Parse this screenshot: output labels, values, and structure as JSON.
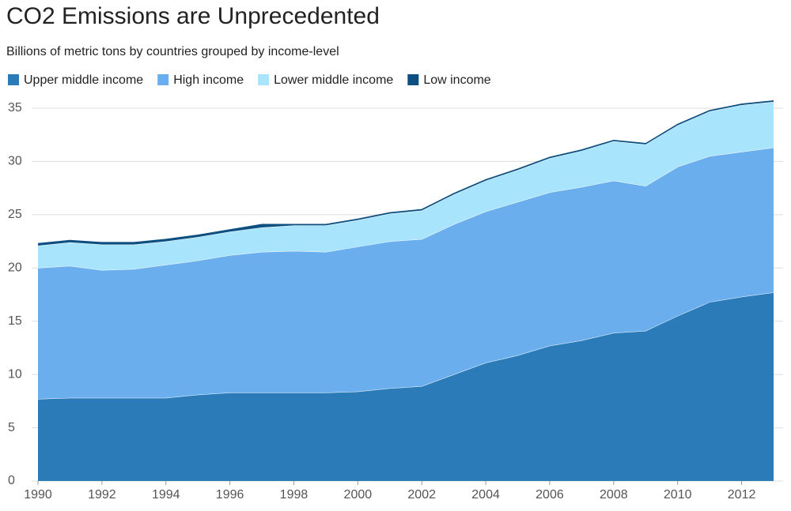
{
  "chart_data": {
    "type": "stacked-area",
    "title": "CO2 Emissions are Unprecedented",
    "subtitle": "Billions of metric tons by countries grouped by income-level",
    "x": [
      1990,
      1991,
      1992,
      1993,
      1994,
      1995,
      1996,
      1997,
      1998,
      1999,
      2000,
      2001,
      2002,
      2003,
      2004,
      2005,
      2006,
      2007,
      2008,
      2009,
      2010,
      2011,
      2012,
      2013
    ],
    "series": [
      {
        "name": "Upper middle income",
        "color": "#2b7bb9",
        "values": [
          7.7,
          7.8,
          7.8,
          7.8,
          7.8,
          8.1,
          8.3,
          8.3,
          8.3,
          8.3,
          8.4,
          8.7,
          8.9,
          10.0,
          11.1,
          11.8,
          12.7,
          13.2,
          13.9,
          14.1,
          15.5,
          16.8,
          17.3,
          17.7
        ]
      },
      {
        "name": "High income",
        "color": "#6aaeee",
        "values": [
          12.3,
          12.4,
          12.0,
          12.1,
          12.5,
          12.6,
          12.9,
          13.2,
          13.3,
          13.2,
          13.6,
          13.8,
          13.8,
          14.1,
          14.2,
          14.4,
          14.4,
          14.4,
          14.3,
          13.6,
          14.0,
          13.7,
          13.6,
          13.6
        ]
      },
      {
        "name": "Lower middle income",
        "color": "#a8e4fb",
        "values": [
          2.1,
          2.2,
          2.4,
          2.3,
          2.2,
          2.2,
          2.2,
          2.3,
          2.4,
          2.5,
          2.5,
          2.6,
          2.7,
          2.8,
          2.9,
          3.0,
          3.2,
          3.4,
          3.7,
          3.9,
          3.9,
          4.2,
          4.4,
          4.3
        ]
      },
      {
        "name": "Low income",
        "color": "#0d4f80",
        "values": [
          0.2,
          0.2,
          0.2,
          0.2,
          0.2,
          0.2,
          0.2,
          0.3,
          0.1,
          0.1,
          0.1,
          0.1,
          0.1,
          0.1,
          0.1,
          0.1,
          0.1,
          0.1,
          0.1,
          0.1,
          0.1,
          0.1,
          0.1,
          0.1
        ]
      }
    ],
    "xlim": [
      1990,
      2013
    ],
    "xticks": [
      1990,
      1992,
      1994,
      1996,
      1998,
      2000,
      2002,
      2004,
      2006,
      2008,
      2010,
      2012
    ],
    "ylim": [
      0,
      35
    ],
    "yticks": [
      0,
      5,
      10,
      15,
      20,
      25,
      30,
      35
    ],
    "grid": true
  }
}
